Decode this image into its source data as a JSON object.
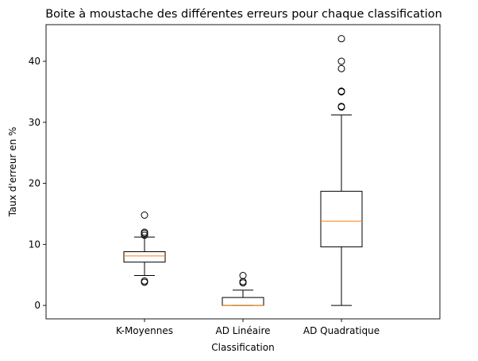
{
  "chart_data": {
    "type": "boxplot",
    "title": "Boite à moustache des différentes erreurs pour chaque classification",
    "xlabel": "Classification",
    "ylabel": "Taux d'erreur en %",
    "ylim": [
      -2.2,
      46
    ],
    "yticks": [
      0,
      10,
      20,
      30,
      40
    ],
    "grid": false,
    "colors": {
      "box": "#000000",
      "median": "#ff7f0e",
      "flier": "#000000"
    },
    "categories": [
      "K-Moyennes",
      "AD Linéaire",
      "AD Quadratique"
    ],
    "boxes": [
      {
        "category": "K-Moyennes",
        "whisker_low": 4.9,
        "q1": 7.1,
        "median": 8.1,
        "q3": 8.8,
        "whisker_high": 11.2,
        "outliers": [
          3.8,
          4.0,
          11.5,
          11.8,
          12.0,
          14.8
        ]
      },
      {
        "category": "AD Linéaire",
        "whisker_low": 0.0,
        "q1": 0.0,
        "median": 0.0,
        "q3": 1.3,
        "whisker_high": 2.5,
        "outliers": [
          3.7,
          3.9,
          4.9
        ]
      },
      {
        "category": "AD Quadratique",
        "whisker_low": 0.0,
        "q1": 9.6,
        "median": 13.8,
        "q3": 18.7,
        "whisker_high": 31.2,
        "outliers": [
          32.5,
          32.6,
          35.0,
          35.1,
          38.8,
          40.0,
          43.7
        ]
      }
    ]
  }
}
